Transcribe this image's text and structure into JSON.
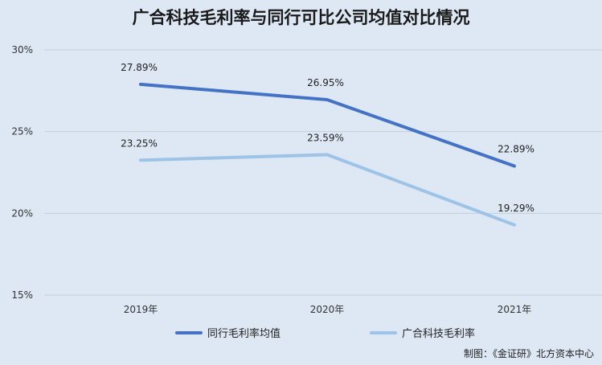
{
  "title": "广合科技毛利率与同行可比公司均值对比情况",
  "source": "制图：《金证研》北方资本中心",
  "chart_data": {
    "type": "line",
    "title": "广合科技毛利率与同行可比公司均值对比情况",
    "categories": [
      "2019年",
      "2020年",
      "2021年"
    ],
    "yticks": [
      "15%",
      "20%",
      "25%",
      "30%"
    ],
    "ylim": [
      15,
      30
    ],
    "grid": true,
    "legend_position": "bottom",
    "series": [
      {
        "name": "同行毛利率均值",
        "values": [
          27.89,
          26.95,
          22.89
        ],
        "labels": [
          "27.89%",
          "26.95%",
          "22.89%"
        ],
        "color": "#4472c4"
      },
      {
        "name": "广合科技毛利率",
        "values": [
          23.25,
          23.59,
          19.29
        ],
        "labels": [
          "23.25%",
          "23.59%",
          "19.29%"
        ],
        "color": "#9dc3e6"
      }
    ]
  }
}
